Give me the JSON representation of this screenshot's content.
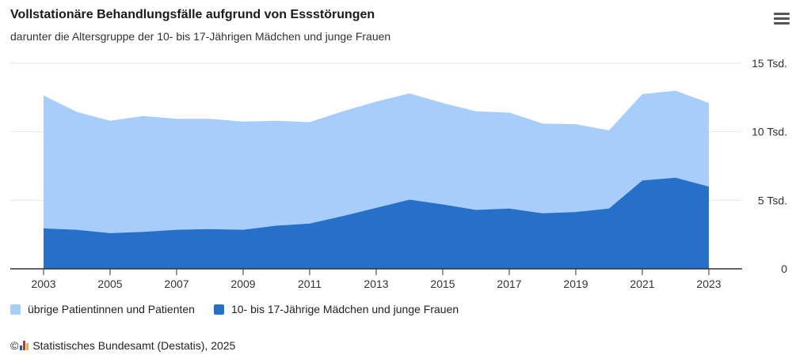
{
  "header": {
    "title": "Vollstationäre Behandlungsfälle aufgrund von Essstörungen",
    "subtitle": "darunter die Altersgruppe der 10- bis 17-Jährigen Mädchen und junge Frauen"
  },
  "menu": {
    "icon": "hamburger-menu-icon"
  },
  "legend": {
    "items": [
      {
        "label": "übrige Patientinnen und Patienten",
        "color": "#a7cdfa"
      },
      {
        "label": "10- bis 17-Jährige Mädchen und junge Frauen",
        "color": "#2770c9"
      }
    ]
  },
  "credits": {
    "copyright": "©",
    "text": "Statistisches Bundesamt (Destatis), 2025"
  },
  "chart_data": {
    "type": "area",
    "stacking": "stacked",
    "x": [
      2003,
      2004,
      2005,
      2006,
      2007,
      2008,
      2009,
      2010,
      2011,
      2012,
      2013,
      2014,
      2015,
      2016,
      2017,
      2018,
      2019,
      2020,
      2021,
      2022,
      2023
    ],
    "x_ticks": [
      "2003",
      "2005",
      "2007",
      "2009",
      "2011",
      "2013",
      "2015",
      "2017",
      "2019",
      "2021",
      "2023"
    ],
    "y_ticks": [
      "0",
      "5 Tsd.",
      "10 Tsd.",
      "15 Tsd."
    ],
    "ylim": [
      0,
      15000
    ],
    "grid": true,
    "series": [
      {
        "name": "10- bis 17-Jährige Mädchen und junge Frauen",
        "color": "#2770c9",
        "values": [
          2950,
          2850,
          2600,
          2700,
          2850,
          2900,
          2850,
          3150,
          3300,
          3850,
          4450,
          5050,
          4700,
          4300,
          4400,
          4050,
          4150,
          4400,
          6450,
          6650,
          6000
        ]
      },
      {
        "name": "übrige Patientinnen und Patienten",
        "color": "#a7cdfa",
        "values": [
          9700,
          8600,
          8200,
          8450,
          8100,
          8050,
          7900,
          7650,
          7400,
          7650,
          7750,
          7750,
          7400,
          7200,
          7000,
          6550,
          6400,
          5700,
          6300,
          6350,
          6100
        ]
      }
    ]
  }
}
